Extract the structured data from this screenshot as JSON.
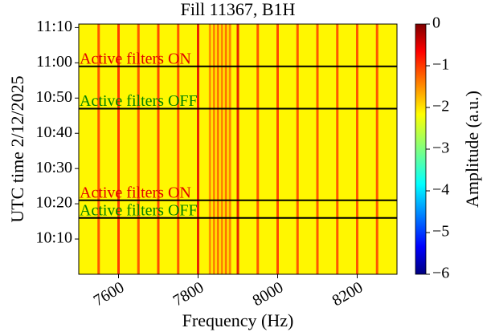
{
  "chart_data": {
    "type": "spectrogram",
    "title": "Fill 11367, B1H",
    "x_label": "Frequency (Hz)",
    "y_label": "UTC time 2/12/2025",
    "xlim": [
      7500,
      8300
    ],
    "xticks": [
      7600,
      7800,
      8000,
      8200
    ],
    "ylim": [
      600,
      671
    ],
    "yticks": [
      {
        "value": 610,
        "label": "10:10"
      },
      {
        "value": 620,
        "label": "10:20"
      },
      {
        "value": 630,
        "label": "10:30"
      },
      {
        "value": 640,
        "label": "10:40"
      },
      {
        "value": 650,
        "label": "10:50"
      },
      {
        "value": 660,
        "label": "11:00"
      },
      {
        "value": 670,
        "label": "11:10"
      }
    ],
    "colormap": "jet",
    "clim": [
      -6,
      0
    ],
    "colorbar_label": "Amplitude (a.u.)",
    "colorbar_ticks": [
      {
        "value": 0,
        "label": "0"
      },
      {
        "value": -1,
        "label": "−1"
      },
      {
        "value": -2,
        "label": "−2"
      },
      {
        "value": -3,
        "label": "−3"
      },
      {
        "value": -4,
        "label": "−4"
      },
      {
        "value": -5,
        "label": "−5"
      },
      {
        "value": -6,
        "label": "−6"
      }
    ],
    "background_value": -2.2,
    "stripes": {
      "x": [
        7550,
        7600,
        7650,
        7700,
        7750,
        7800,
        7830,
        7840,
        7850,
        7860,
        7870,
        7880,
        7900,
        7950,
        8000,
        8050,
        8100,
        8150,
        8200,
        8250
      ],
      "values": [
        -1.1,
        -0.9,
        -1.1,
        -1.0,
        -1.1,
        -0.6,
        -1.5,
        -1.4,
        -1.3,
        -1.4,
        -1.3,
        -1.4,
        -0.6,
        -1.1,
        -1.0,
        -1.1,
        -1.1,
        -1.1,
        -1.1,
        -1.1
      ]
    },
    "annotations": [
      {
        "text": "Active filters ON",
        "y": 659,
        "color": "#e00000"
      },
      {
        "text": "Active filters OFF",
        "y": 647,
        "color": "#008000"
      },
      {
        "text": "Active filters ON",
        "y": 621,
        "color": "#e00000"
      },
      {
        "text": "Active filters OFF",
        "y": 616,
        "color": "#008000"
      }
    ]
  }
}
